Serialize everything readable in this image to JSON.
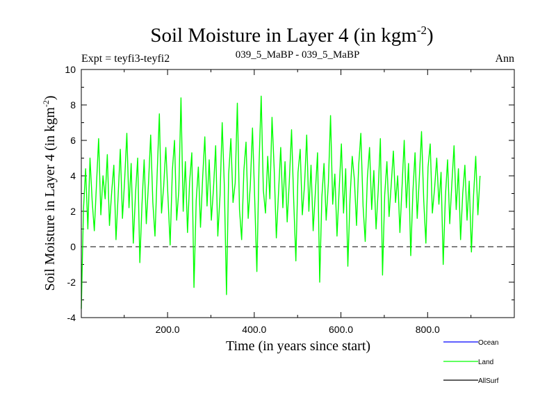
{
  "chart_data": {
    "type": "line",
    "title": "Soil Moisture in Layer 4 (in kgm",
    "title_sup": "-2",
    "title_close": ")",
    "subtitle_left": "Expt = teyfi3-teyfi2",
    "subtitle_center": "039_5_MaBP - 039_5_MaBP",
    "subtitle_right": "Ann",
    "xlabel": "Time (in years since start)",
    "ylabel": "Soil Moisture in Layer 4 (in kgm",
    "ylabel_sup": "-2",
    "ylabel_close": ")",
    "xlim": [
      1,
      1000
    ],
    "ylim": [
      -4,
      10
    ],
    "x_ticks": [
      200,
      400,
      600,
      800
    ],
    "x_tick_labels": [
      "200.0",
      "400.0",
      "600.0",
      "800.0"
    ],
    "y_ticks": [
      -4,
      -2,
      0,
      2,
      4,
      6,
      8,
      10
    ],
    "y_tick_labels": [
      "-4",
      "-2",
      "0",
      "2",
      "4",
      "6",
      "8",
      "10"
    ],
    "reference_line": 0,
    "legend_position": "bottom-right",
    "series": [
      {
        "name": "Ocean",
        "color": "#0000ff",
        "values": []
      },
      {
        "name": "Land",
        "color": "#00ff00",
        "x_start": 1,
        "x_step": 5,
        "values": [
          -3.5,
          2.1,
          4.4,
          1.0,
          5.0,
          2.6,
          0.9,
          3.5,
          6.1,
          1.8,
          4.0,
          2.7,
          5.2,
          1.2,
          3.1,
          4.6,
          0.4,
          2.9,
          5.5,
          1.6,
          3.8,
          6.4,
          2.2,
          4.7,
          0.2,
          3.0,
          5.0,
          -0.9,
          2.4,
          4.9,
          1.3,
          3.6,
          6.3,
          2.5,
          0.6,
          4.1,
          7.5,
          1.9,
          3.4,
          5.6,
          2.8,
          0.1,
          4.3,
          6.0,
          1.5,
          3.2,
          8.4,
          2.0,
          4.8,
          0.8,
          3.7,
          5.3,
          -2.3,
          2.6,
          4.5,
          1.1,
          3.9,
          6.2,
          2.3,
          4.9,
          1.5,
          3.3,
          5.7,
          0.6,
          2.9,
          7.0,
          3.4,
          -2.7,
          4.1,
          6.1,
          2.5,
          3.6,
          8.1,
          2.1,
          0.4,
          4.3,
          5.9,
          1.6,
          3.5,
          6.7,
          2.8,
          -1.4,
          4.6,
          8.5,
          3.2,
          1.9,
          5.1,
          2.7,
          7.3,
          4.4,
          0.5,
          3.0,
          5.6,
          2.2,
          4.8,
          1.4,
          3.7,
          6.6,
          2.6,
          -0.8,
          4.2,
          5.5,
          1.8,
          3.5,
          6.3,
          2.0,
          4.6,
          0.9,
          3.1,
          5.3,
          -2.0,
          2.8,
          4.7,
          1.5,
          3.6,
          7.4,
          2.4,
          4.1,
          0.6,
          3.3,
          5.8,
          1.9,
          4.4,
          -1.1,
          2.7,
          5.1,
          3.8,
          1.2,
          4.6,
          6.4,
          2.3,
          0.3,
          3.9,
          5.6,
          2.1,
          4.3,
          1.0,
          3.2,
          6.1,
          -1.6,
          2.9,
          4.8,
          1.7,
          3.5,
          5.4,
          2.5,
          4.0,
          0.8,
          3.4,
          6.0,
          2.2,
          4.7,
          -0.5,
          3.1,
          5.3,
          1.6,
          3.9,
          6.5,
          2.6,
          0.2,
          4.5,
          5.8,
          1.9,
          3.3,
          5.0,
          2.4,
          4.2,
          -1.0,
          2.8,
          4.9,
          1.3,
          3.6,
          5.7,
          2.1,
          4.4,
          0.4,
          3.0,
          4.6,
          1.5,
          3.7,
          -0.3,
          2.9,
          5.1,
          1.8,
          4.0
        ]
      },
      {
        "name": "AllSurf",
        "color": "#000000",
        "values": []
      }
    ]
  }
}
